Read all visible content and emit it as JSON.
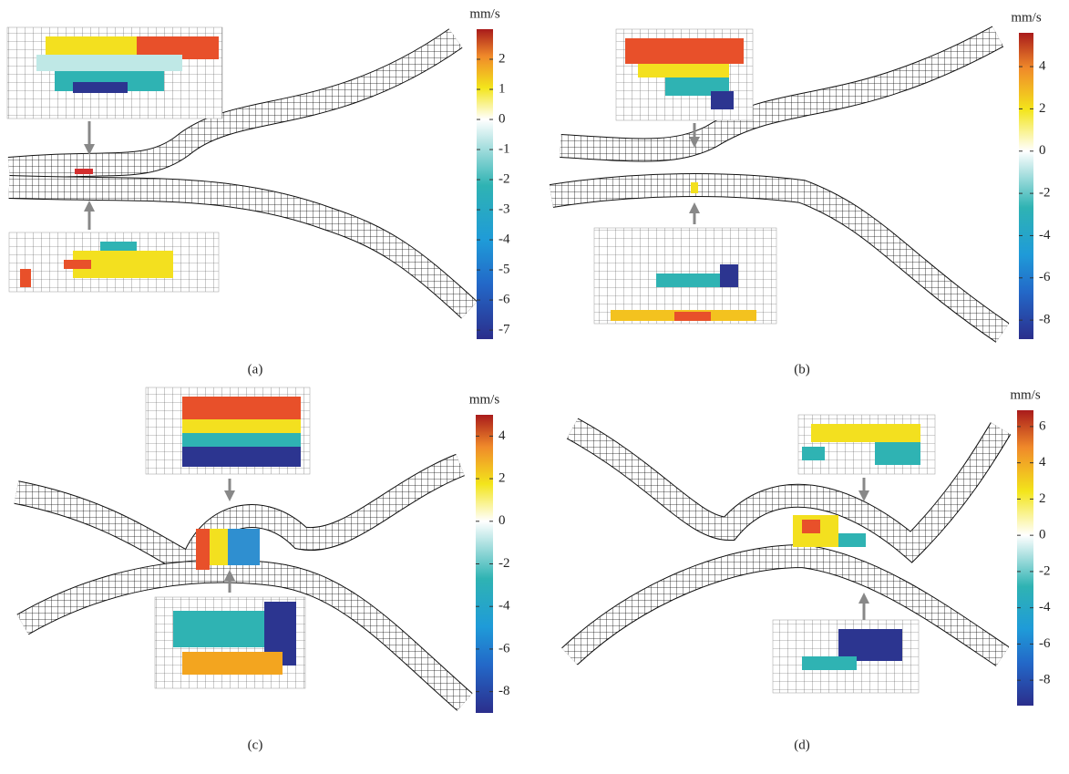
{
  "panels": [
    {
      "label": "(a)",
      "colorbar": {
        "unit": "mm/s",
        "lim": [
          -7.3,
          3.0
        ],
        "ticks": [
          -7,
          -6,
          -5,
          -4,
          -3,
          -2,
          -1,
          0,
          1,
          2
        ]
      }
    },
    {
      "label": "(b)",
      "colorbar": {
        "unit": "mm/s",
        "lim": [
          -8.9,
          5.6
        ],
        "ticks": [
          -8,
          -6,
          -4,
          -2,
          0,
          2,
          4
        ]
      }
    },
    {
      "label": "(c)",
      "colorbar": {
        "unit": "mm/s",
        "lim": [
          -9.0,
          5.0
        ],
        "ticks": [
          -8,
          -6,
          -4,
          -2,
          0,
          2,
          4
        ]
      }
    },
    {
      "label": "(d)",
      "colorbar": {
        "unit": "mm/s",
        "lim": [
          -9.4,
          6.9
        ],
        "ticks": [
          -8,
          -6,
          -4,
          -2,
          0,
          2,
          4,
          6
        ]
      }
    }
  ]
}
